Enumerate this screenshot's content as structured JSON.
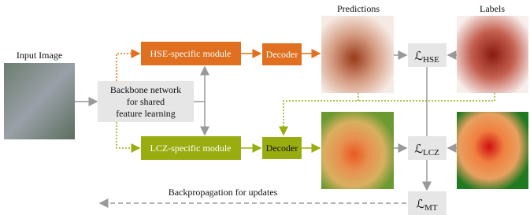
{
  "input_image": {
    "label": "Input Image"
  },
  "backbone": {
    "lines": [
      "Backbone network",
      "for shared",
      "feature learning"
    ]
  },
  "modules": [
    {
      "label": "HSE-specific module"
    },
    {
      "label": "LCZ-specific module"
    }
  ],
  "decoders": [
    {
      "label": "Decoder"
    },
    {
      "label": "Decoder"
    }
  ],
  "columns": {
    "predictions": "Predictions",
    "labels": "Labels"
  },
  "losses": [
    {
      "symbol": "ℒ",
      "subscript": "HSE"
    },
    {
      "symbol": "ℒ",
      "subscript": "LCZ"
    },
    {
      "symbol": "ℒ",
      "subscript": "MT"
    }
  ],
  "backprop": "Backpropagation for updates"
}
